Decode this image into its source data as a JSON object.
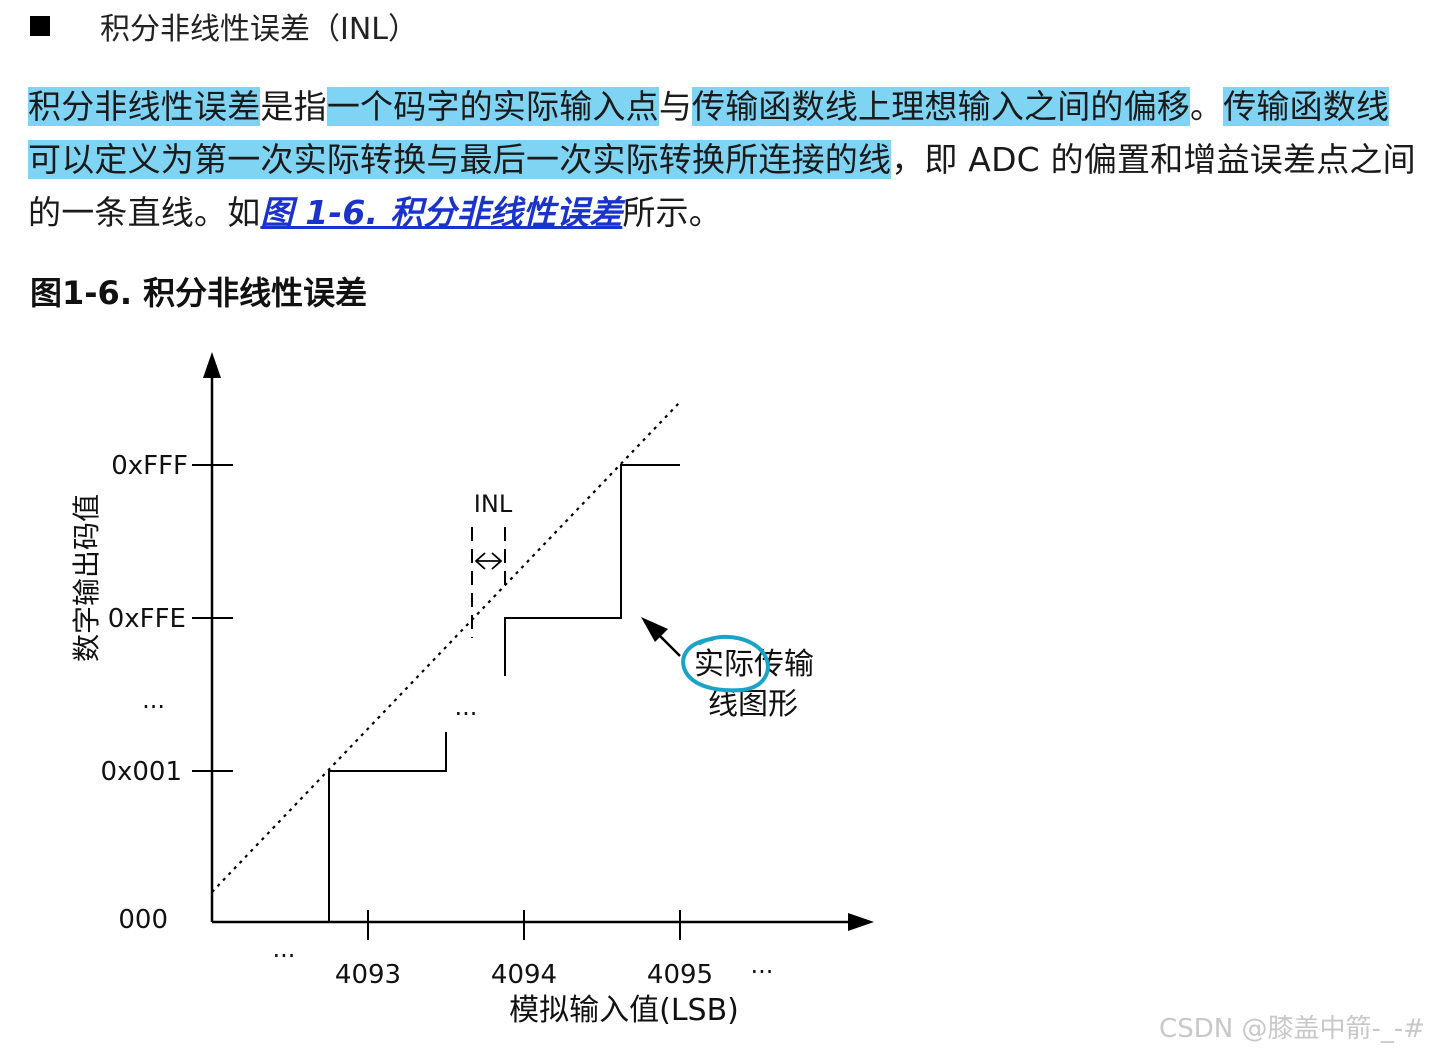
{
  "section": {
    "bullet_icon": "square-bullet-icon",
    "title": "积分非线性误差（INL）"
  },
  "paragraph": {
    "segments": [
      {
        "text": "积分非线性误差",
        "highlight": true
      },
      {
        "text": "是指",
        "highlight": false
      },
      {
        "text": "一个码字的实际输入点",
        "highlight": true
      },
      {
        "text": "与",
        "highlight": false
      },
      {
        "text": "传输函数线上理想输入之间的偏移",
        "highlight": true
      },
      {
        "text": "。",
        "highlight": false
      },
      {
        "text": "传输函数线可以定义为第一次实际转换与最后一次实际转换所连接的线",
        "highlight": true
      },
      {
        "text": "，即 ADC 的偏置和增益误差点之间的一条直线。如",
        "highlight": false
      }
    ],
    "link_text": "图 1-6. 积分非线性误差",
    "tail_text": "所示。",
    "highlight_color": "#7fd3f3",
    "link_color": "#1a33cc"
  },
  "figure": {
    "caption": "图1-6.  积分非线性误差",
    "y_axis_label": "数字输出码值",
    "x_axis_label": "模拟输入值(LSB)",
    "y_ticks": [
      "0xFFF",
      "0xFFE",
      "...",
      "0x001",
      "000"
    ],
    "x_ticks": [
      "...",
      "4093",
      "4094",
      "4095",
      "..."
    ],
    "inl_label": "INL",
    "mid_ellipsis": "...",
    "annotation_line1": "实际传输",
    "annotation_line2": "线图形",
    "annotation_circle_color": "#1aa3c8"
  },
  "watermark": "CSDN @膝盖中箭-_-#"
}
